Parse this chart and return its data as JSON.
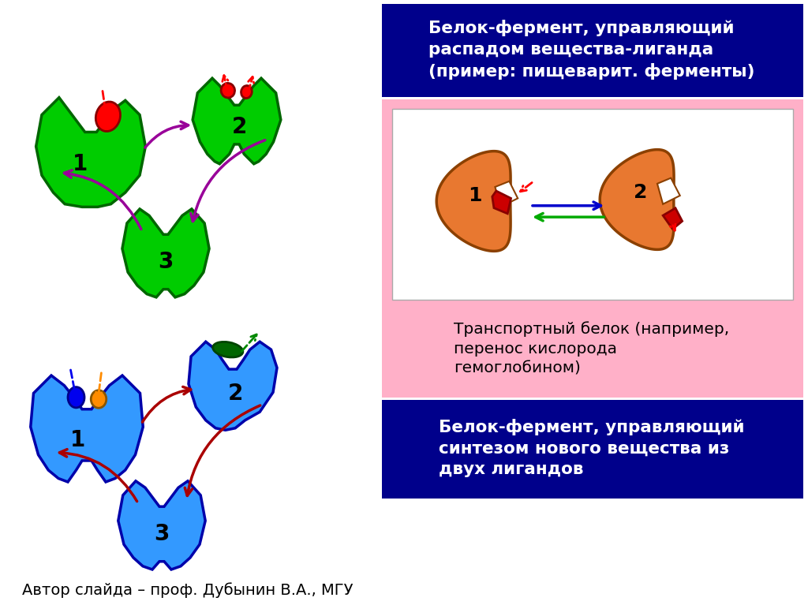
{
  "bg_color": "#ffffff",
  "title_box1_color": "#00008B",
  "title_box2_color": "#00008B",
  "pink_box_color": "#FFB0C8",
  "inner_white_box_color": "#ffffff",
  "green_protein_color": "#00CC00",
  "green_outline": "#006600",
  "blue_protein_color": "#3399FF",
  "blue_outline": "#0000AA",
  "red_ligand_color": "#FF0000",
  "orange_ligand_color": "#FF8C00",
  "blue_ligand_color": "#0000EE",
  "dark_green_combined": "#006600",
  "orange_protein_color": "#E87830",
  "orange_outline": "#8B4000",
  "purple_arrow": "#990099",
  "dark_red_arrow": "#AA0000",
  "red_dashed": "#FF0000",
  "green_arrow": "#00AA00",
  "blue_arrow": "#0000CC",
  "text_color": "#000000",
  "white_text": "#ffffff",
  "title1": "Белок-фермент, управляющий\nраспадом вещества-лиганда\n(пример: пищеварит. ферменты)",
  "title2": "Белок-фермент, управляющий\nсинтезом нового вещества из\nдвух лигандов",
  "transport_text": "Транспортный белок (например,\nперенос кислорода\nгемоглобином)",
  "footer": "Автор слайда – проф. Дубынин В.А., МГУ"
}
